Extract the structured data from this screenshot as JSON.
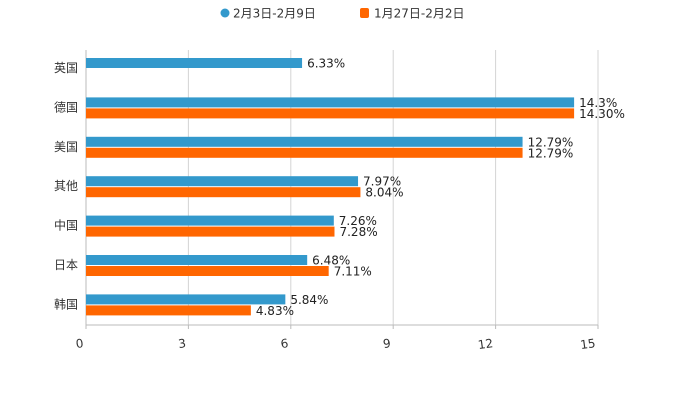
{
  "chart_data": {
    "type": "bar",
    "orientation": "horizontal",
    "title": "",
    "xlabel": "",
    "ylabel": "",
    "xlim": [
      0,
      15
    ],
    "xticks": [
      0,
      3,
      6,
      9,
      12,
      15
    ],
    "xtick_labels": [
      "0",
      "3",
      "6",
      "9",
      "12",
      "15"
    ],
    "grid": "vertical",
    "legend_position": "top-center",
    "categories": [
      "英国",
      "德国",
      "美国",
      "其他",
      "中国",
      "日本",
      "韩国"
    ],
    "series": [
      {
        "name": "2月3日-2月9日",
        "color": "#3399cc",
        "values": [
          6.33,
          14.3,
          12.79,
          7.97,
          7.26,
          6.48,
          5.84
        ],
        "labels": [
          "6.33%",
          "14.3%",
          "12.79%",
          "7.97%",
          "7.26%",
          "6.48%",
          "5.84%"
        ]
      },
      {
        "name": "1月27日-2月2日",
        "color": "#ff6600",
        "values": [
          null,
          14.3,
          12.79,
          8.04,
          7.28,
          7.11,
          4.83
        ],
        "labels": [
          null,
          "14.30%",
          "12.79%",
          "8.04%",
          "7.28%",
          "7.11%",
          "4.83%"
        ]
      }
    ]
  }
}
